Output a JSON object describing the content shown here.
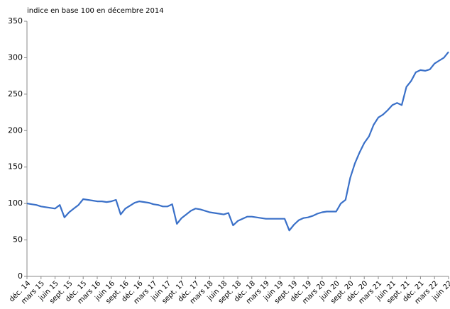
{
  "chart_data": {
    "type": "line",
    "title": "indice en base 100 en décembre 2014",
    "categories": [
      "déc. 14",
      null,
      null,
      "mars 15",
      null,
      null,
      "juin 15",
      null,
      null,
      "sept. 15",
      null,
      null,
      "déc. 15",
      null,
      null,
      "mars 16",
      null,
      null,
      "juin 16",
      null,
      null,
      "sept. 16",
      null,
      null,
      "déc. 16",
      null,
      null,
      "mars 17",
      null,
      null,
      "juin 17",
      null,
      null,
      "sept. 17",
      null,
      null,
      "déc. 17",
      null,
      null,
      "mars 18",
      null,
      null,
      "juin 18",
      null,
      null,
      "sept. 18",
      null,
      null,
      "déc. 18",
      null,
      null,
      "mars 19",
      null,
      null,
      "juin 19",
      null,
      null,
      "sept. 19",
      null,
      null,
      "déc. 19",
      null,
      null,
      "mars 20",
      null,
      null,
      "juin 20",
      null,
      null,
      "sept. 20",
      null,
      null,
      "déc. 20",
      null,
      null,
      "mars 21",
      null,
      null,
      "juin 21",
      null,
      null,
      "sept. 21",
      null,
      null,
      "déc. 21",
      null,
      null,
      "mars 22",
      null,
      null,
      "juin 22"
    ],
    "series": [
      {
        "color": "#3a70c8",
        "values": [
          100,
          99,
          98,
          96,
          95,
          94,
          93,
          98,
          81,
          88,
          93,
          98,
          106,
          105,
          104,
          103,
          103,
          102,
          103,
          105,
          85,
          93,
          97,
          101,
          103,
          102,
          101,
          99,
          98,
          96,
          96,
          99,
          72,
          80,
          85,
          90,
          93,
          92,
          90,
          88,
          87,
          86,
          85,
          87,
          70,
          76,
          79,
          82,
          82,
          81,
          80,
          79,
          79,
          79,
          79,
          79,
          63,
          71,
          77,
          80,
          81,
          83,
          86,
          88,
          89,
          89,
          89,
          100,
          105,
          135,
          155,
          170,
          183,
          192,
          208,
          218,
          222,
          228,
          235,
          238,
          235,
          260,
          268,
          280,
          283,
          282,
          284,
          292,
          296,
          300,
          308
        ]
      }
    ],
    "ylim": [
      0,
      350
    ],
    "yticks": [
      0,
      50,
      100,
      150,
      200,
      250,
      300,
      350
    ],
    "grid": false
  }
}
